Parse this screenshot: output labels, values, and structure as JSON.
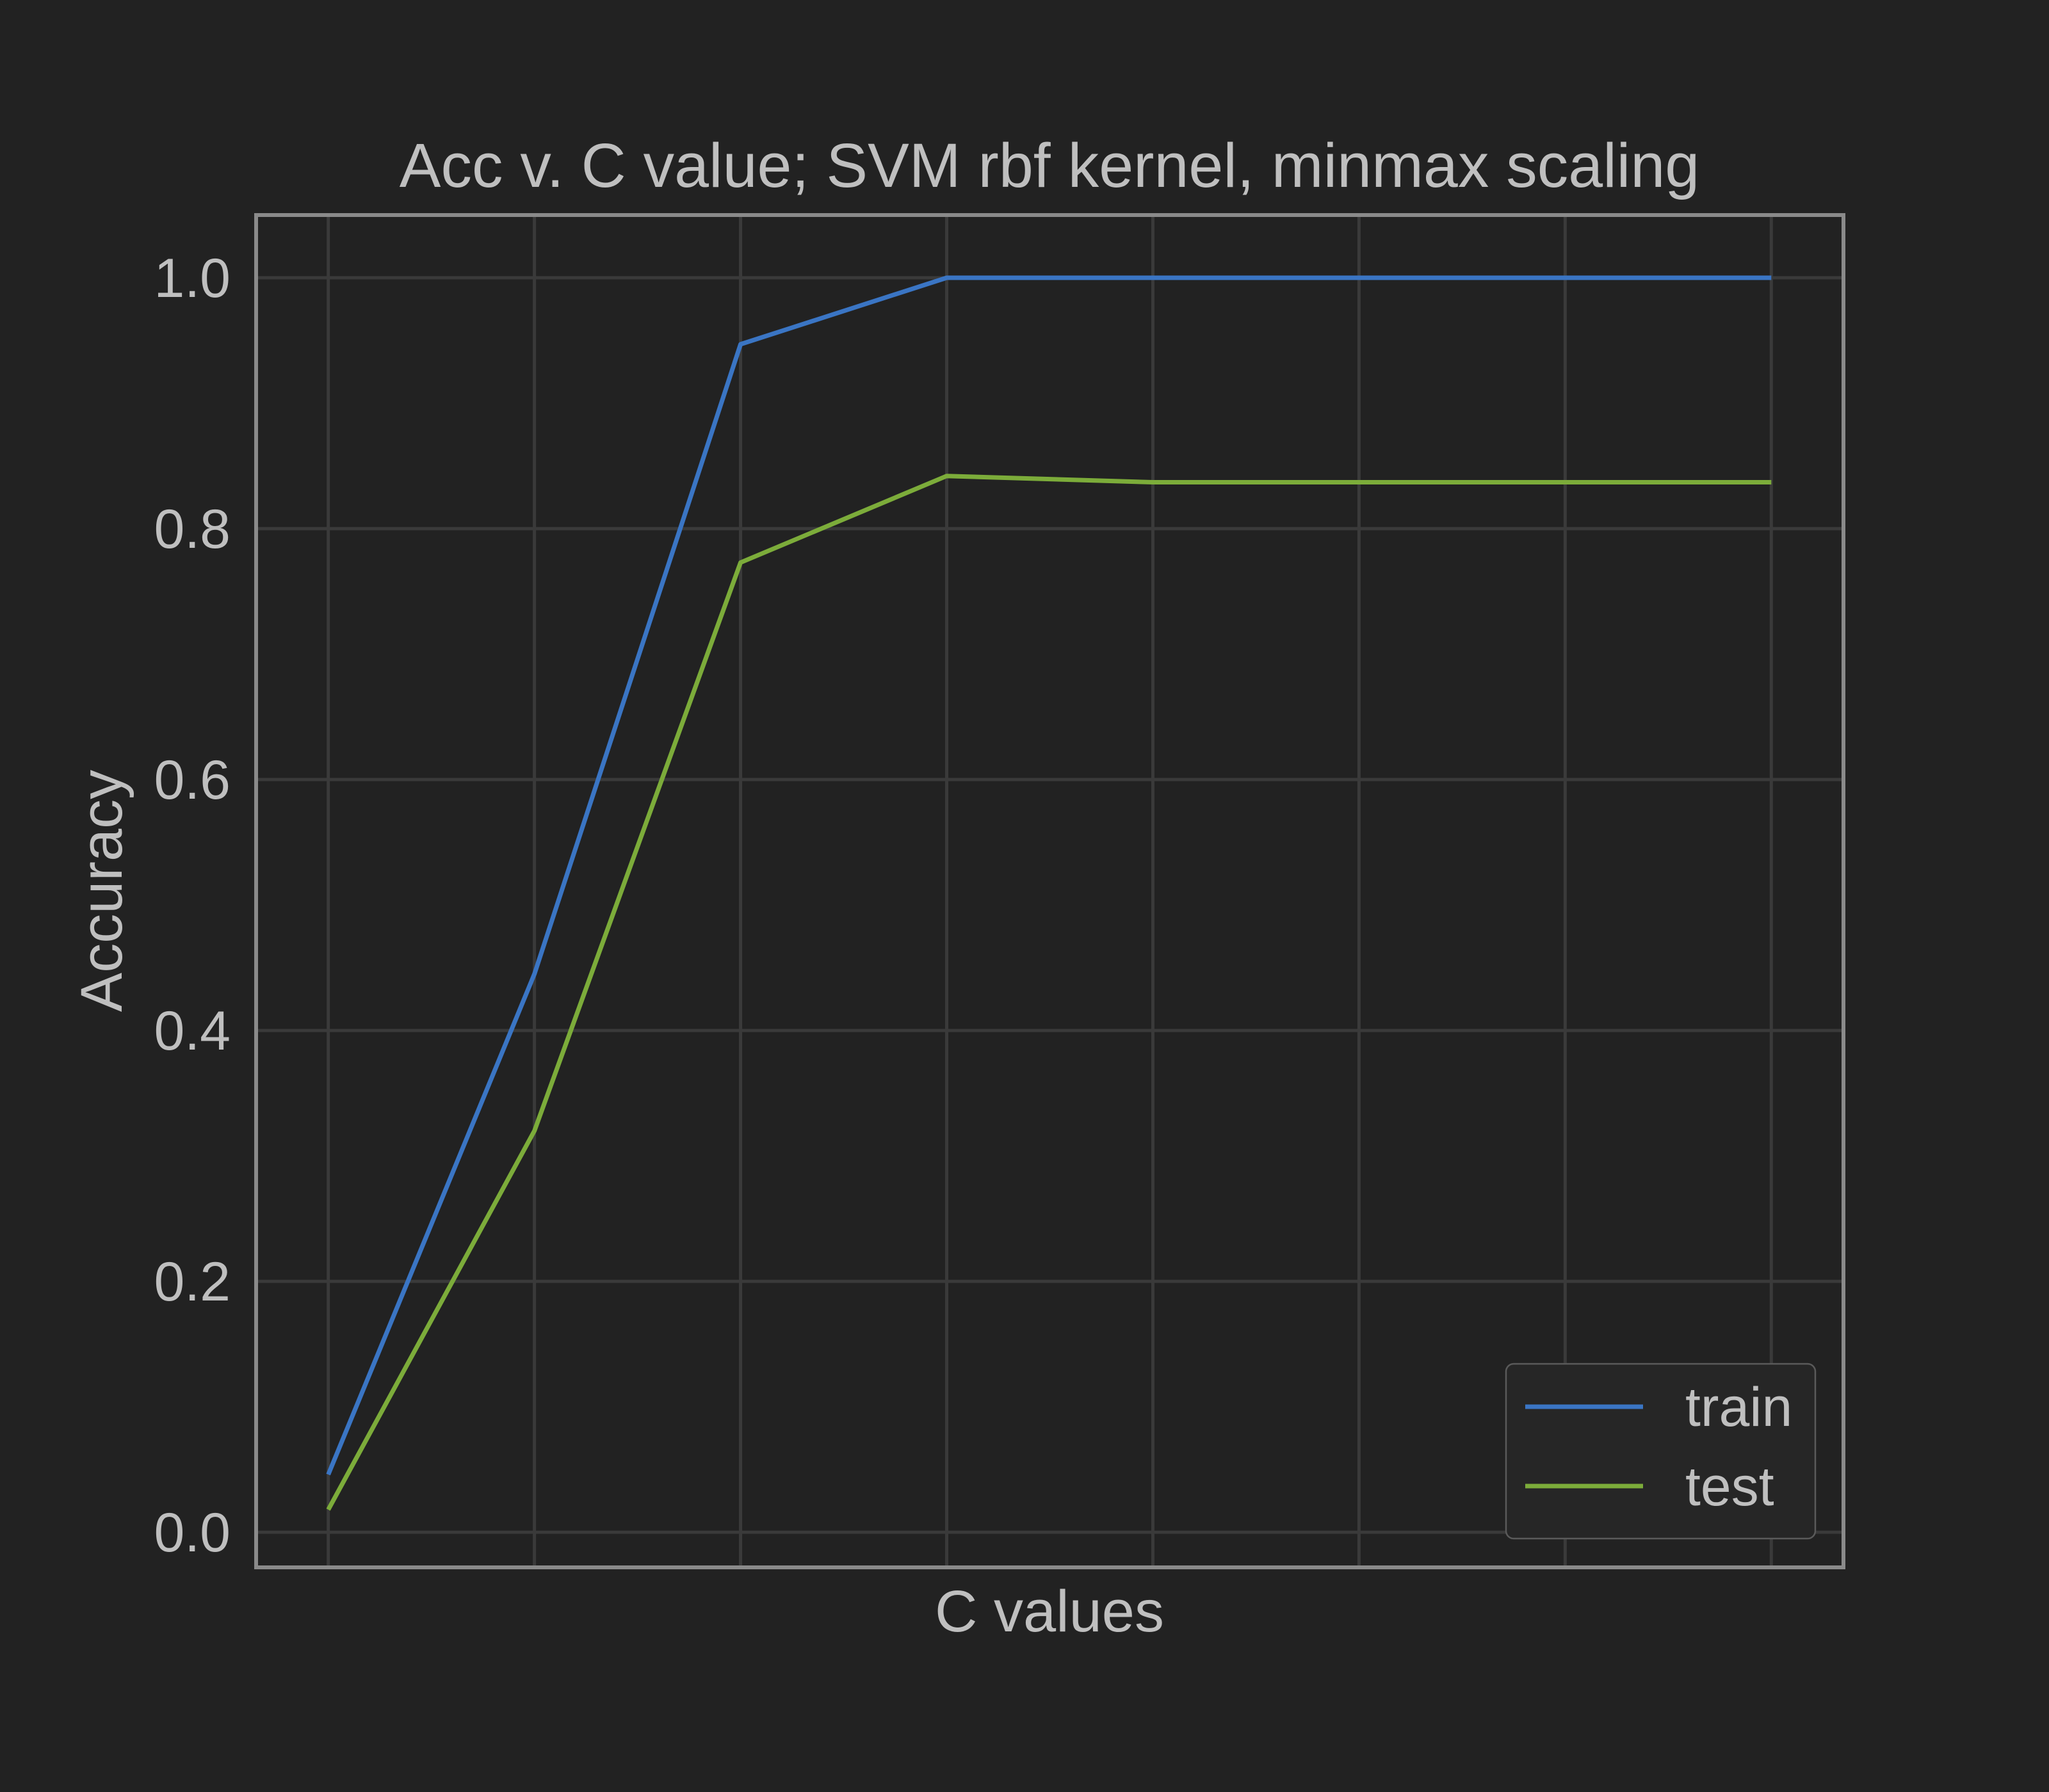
{
  "chart_data": {
    "type": "line",
    "title": "Acc v. C value; SVM rbf kernel,  minmax scaling",
    "xlabel": "C values",
    "ylabel": "Accuracy",
    "x": [
      0,
      1,
      2,
      3,
      4,
      5,
      6,
      7
    ],
    "xlim": [
      -0.35,
      7.35
    ],
    "ylim": [
      -0.028,
      1.05
    ],
    "yticks": [
      0.0,
      0.2,
      0.4,
      0.6,
      0.8,
      1.0
    ],
    "ytick_labels": [
      "0.0",
      "0.2",
      "0.4",
      "0.6",
      "0.8",
      "1.0"
    ],
    "grid": true,
    "legend_position": "bottom-right",
    "series": [
      {
        "name": "train",
        "color": "#3a75c4",
        "values": [
          0.046,
          0.445,
          0.947,
          1.0,
          1.0,
          1.0,
          1.0,
          1.0
        ]
      },
      {
        "name": "test",
        "color": "#7cac3a",
        "values": [
          0.018,
          0.32,
          0.773,
          0.842,
          0.837,
          0.837,
          0.837,
          0.837
        ]
      }
    ]
  },
  "colors": {
    "background": "#222222",
    "text": "#bfbfbf",
    "grid": "#3a3a3a",
    "frame": "#8a8a8a"
  }
}
